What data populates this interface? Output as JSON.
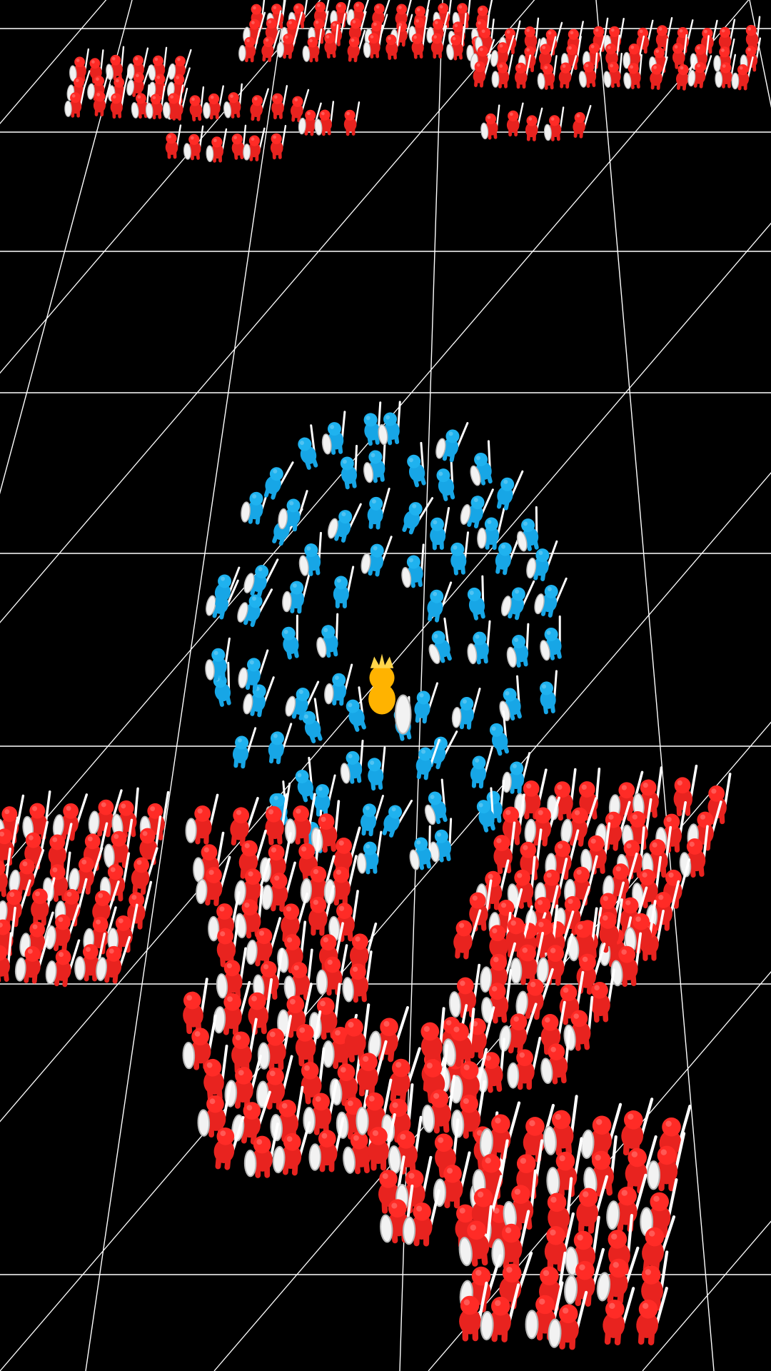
{
  "scene": {
    "type": "crowd-battle-game",
    "background_color": "#000000",
    "grid_line_color": "#ffffff"
  },
  "teams": {
    "player": {
      "color": "#17a6e6",
      "head_color": "#1fb2ef",
      "formation": "ring",
      "approx_soldier_count": 90
    },
    "enemy": {
      "color": "#e8231f",
      "head_color": "#ff2b26",
      "formation": "blocks",
      "approx_soldier_count": 420
    }
  },
  "leader": {
    "color": "#ffb300",
    "crown_color": "#ffd54a"
  },
  "equipment": {
    "shield_color": "#f2f2f2",
    "shield_shade_color": "#b8b8b8",
    "sword_color": "#ffffff"
  }
}
